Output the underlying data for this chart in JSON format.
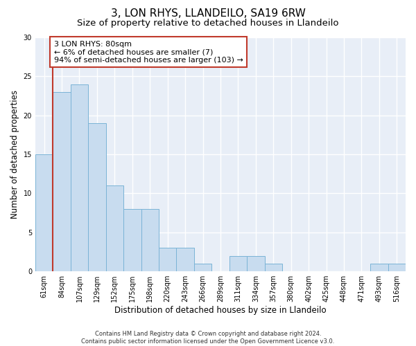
{
  "title": "3, LON RHYS, LLANDEILO, SA19 6RW",
  "subtitle": "Size of property relative to detached houses in Llandeilo",
  "xlabel": "Distribution of detached houses by size in Llandeilo",
  "ylabel": "Number of detached properties",
  "categories": [
    "61sqm",
    "84sqm",
    "107sqm",
    "129sqm",
    "152sqm",
    "175sqm",
    "198sqm",
    "220sqm",
    "243sqm",
    "266sqm",
    "289sqm",
    "311sqm",
    "334sqm",
    "357sqm",
    "380sqm",
    "402sqm",
    "425sqm",
    "448sqm",
    "471sqm",
    "493sqm",
    "516sqm"
  ],
  "values": [
    15,
    23,
    24,
    19,
    11,
    8,
    8,
    3,
    3,
    1,
    0,
    2,
    2,
    1,
    0,
    0,
    0,
    0,
    0,
    1,
    1
  ],
  "bar_color": "#c8dcef",
  "bar_edgecolor": "#7ab3d6",
  "vline_color": "#c0392b",
  "vline_x_index": 0.5,
  "annotation_line1": "3 LON RHYS: 80sqm",
  "annotation_line2": "← 6% of detached houses are smaller (7)",
  "annotation_line3": "94% of semi-detached houses are larger (103) →",
  "annotation_box_facecolor": "#ffffff",
  "annotation_box_edgecolor": "#c0392b",
  "ylim_max": 30,
  "yticks": [
    0,
    5,
    10,
    15,
    20,
    25,
    30
  ],
  "footer_line1": "Contains HM Land Registry data © Crown copyright and database right 2024.",
  "footer_line2": "Contains public sector information licensed under the Open Government Licence v3.0.",
  "plot_bg_color": "#e8eef7",
  "grid_color": "#ffffff",
  "title_fontsize": 11,
  "subtitle_fontsize": 9.5,
  "axis_label_fontsize": 8.5,
  "tick_fontsize": 7,
  "annotation_fontsize": 8,
  "footer_fontsize": 6
}
